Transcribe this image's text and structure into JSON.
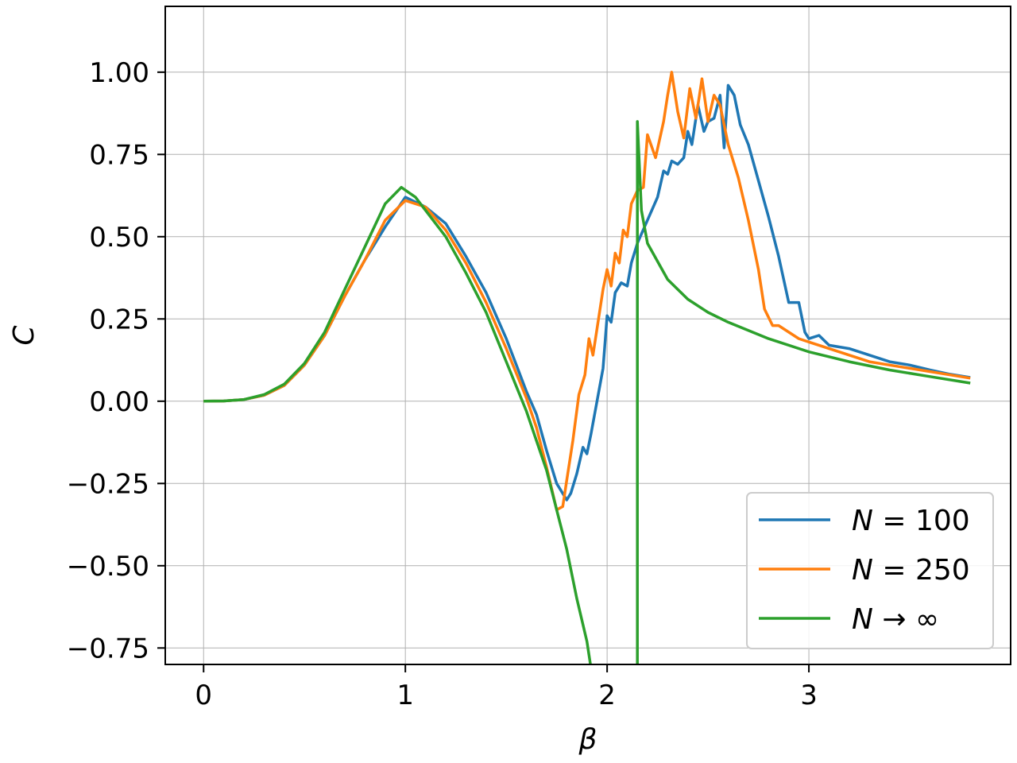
{
  "chart_data": {
    "type": "line",
    "xlabel": "β",
    "ylabel": "C",
    "xlim": [
      -0.19,
      4.0
    ],
    "ylim": [
      -0.8,
      1.2
    ],
    "grid": true,
    "legend_position": "bottom-right",
    "x_ticks": [
      {
        "value": 0,
        "label": "0"
      },
      {
        "value": 1,
        "label": "1"
      },
      {
        "value": 2,
        "label": "2"
      },
      {
        "value": 3,
        "label": "3"
      }
    ],
    "y_ticks": [
      {
        "value": 1.0,
        "label": "1.00"
      },
      {
        "value": 0.75,
        "label": "0.75"
      },
      {
        "value": 0.5,
        "label": "0.50"
      },
      {
        "value": 0.25,
        "label": "0.25"
      },
      {
        "value": 0.0,
        "label": "0.00"
      },
      {
        "value": -0.25,
        "label": "−0.25"
      },
      {
        "value": -0.5,
        "label": "−0.50"
      },
      {
        "value": -0.75,
        "label": "−0.75"
      }
    ],
    "series": [
      {
        "name": "N = 100",
        "legend_var": "N",
        "legend_rel": " = 100",
        "color": "#1f77b4",
        "points": [
          [
            0,
            0
          ],
          [
            0.1,
            0.0008
          ],
          [
            0.2,
            0.005
          ],
          [
            0.3,
            0.018
          ],
          [
            0.4,
            0.048
          ],
          [
            0.5,
            0.11
          ],
          [
            0.6,
            0.2
          ],
          [
            0.7,
            0.32
          ],
          [
            0.8,
            0.43
          ],
          [
            0.9,
            0.53
          ],
          [
            1.0,
            0.62
          ],
          [
            1.1,
            0.59
          ],
          [
            1.2,
            0.54
          ],
          [
            1.3,
            0.44
          ],
          [
            1.4,
            0.33
          ],
          [
            1.5,
            0.19
          ],
          [
            1.55,
            0.11
          ],
          [
            1.6,
            0.03
          ],
          [
            1.65,
            -0.04
          ],
          [
            1.7,
            -0.15
          ],
          [
            1.75,
            -0.25
          ],
          [
            1.8,
            -0.3
          ],
          [
            1.82,
            -0.28
          ],
          [
            1.85,
            -0.22
          ],
          [
            1.88,
            -0.14
          ],
          [
            1.9,
            -0.16
          ],
          [
            1.92,
            -0.1
          ],
          [
            1.95,
            0.0
          ],
          [
            1.98,
            0.1
          ],
          [
            2.0,
            0.26
          ],
          [
            2.02,
            0.24
          ],
          [
            2.04,
            0.33
          ],
          [
            2.07,
            0.36
          ],
          [
            2.1,
            0.35
          ],
          [
            2.12,
            0.42
          ],
          [
            2.15,
            0.48
          ],
          [
            2.2,
            0.55
          ],
          [
            2.25,
            0.62
          ],
          [
            2.28,
            0.7
          ],
          [
            2.3,
            0.69
          ],
          [
            2.32,
            0.73
          ],
          [
            2.35,
            0.72
          ],
          [
            2.38,
            0.74
          ],
          [
            2.4,
            0.82
          ],
          [
            2.42,
            0.78
          ],
          [
            2.45,
            0.9
          ],
          [
            2.48,
            0.82
          ],
          [
            2.5,
            0.85
          ],
          [
            2.53,
            0.86
          ],
          [
            2.56,
            0.93
          ],
          [
            2.58,
            0.77
          ],
          [
            2.6,
            0.96
          ],
          [
            2.63,
            0.93
          ],
          [
            2.66,
            0.84
          ],
          [
            2.7,
            0.78
          ],
          [
            2.75,
            0.67
          ],
          [
            2.8,
            0.56
          ],
          [
            2.85,
            0.44
          ],
          [
            2.9,
            0.3
          ],
          [
            2.95,
            0.3
          ],
          [
            2.98,
            0.21
          ],
          [
            3.0,
            0.19
          ],
          [
            3.05,
            0.2
          ],
          [
            3.1,
            0.17
          ],
          [
            3.2,
            0.16
          ],
          [
            3.3,
            0.14
          ],
          [
            3.4,
            0.12
          ],
          [
            3.5,
            0.11
          ],
          [
            3.6,
            0.095
          ],
          [
            3.7,
            0.082
          ],
          [
            3.8,
            0.072
          ]
        ]
      },
      {
        "name": "N = 250",
        "legend_var": "N",
        "legend_rel": " = 250",
        "color": "#ff7f0e",
        "points": [
          [
            0,
            0
          ],
          [
            0.1,
            0.0008
          ],
          [
            0.2,
            0.005
          ],
          [
            0.3,
            0.018
          ],
          [
            0.4,
            0.048
          ],
          [
            0.5,
            0.11
          ],
          [
            0.6,
            0.2
          ],
          [
            0.7,
            0.32
          ],
          [
            0.8,
            0.43
          ],
          [
            0.9,
            0.55
          ],
          [
            1.0,
            0.61
          ],
          [
            1.1,
            0.59
          ],
          [
            1.2,
            0.52
          ],
          [
            1.3,
            0.42
          ],
          [
            1.4,
            0.3
          ],
          [
            1.5,
            0.16
          ],
          [
            1.6,
            0.01
          ],
          [
            1.65,
            -0.08
          ],
          [
            1.7,
            -0.2
          ],
          [
            1.75,
            -0.33
          ],
          [
            1.78,
            -0.32
          ],
          [
            1.8,
            -0.24
          ],
          [
            1.83,
            -0.12
          ],
          [
            1.86,
            0.02
          ],
          [
            1.89,
            0.08
          ],
          [
            1.91,
            0.19
          ],
          [
            1.93,
            0.14
          ],
          [
            1.95,
            0.22
          ],
          [
            1.98,
            0.34
          ],
          [
            2.0,
            0.4
          ],
          [
            2.02,
            0.35
          ],
          [
            2.04,
            0.45
          ],
          [
            2.06,
            0.42
          ],
          [
            2.08,
            0.52
          ],
          [
            2.1,
            0.5
          ],
          [
            2.12,
            0.6
          ],
          [
            2.15,
            0.64
          ],
          [
            2.18,
            0.65
          ],
          [
            2.2,
            0.81
          ],
          [
            2.24,
            0.74
          ],
          [
            2.28,
            0.85
          ],
          [
            2.3,
            0.93
          ],
          [
            2.32,
            1.0
          ],
          [
            2.35,
            0.88
          ],
          [
            2.38,
            0.8
          ],
          [
            2.41,
            0.95
          ],
          [
            2.44,
            0.86
          ],
          [
            2.47,
            0.98
          ],
          [
            2.5,
            0.85
          ],
          [
            2.53,
            0.93
          ],
          [
            2.56,
            0.9
          ],
          [
            2.6,
            0.78
          ],
          [
            2.65,
            0.68
          ],
          [
            2.7,
            0.55
          ],
          [
            2.75,
            0.4
          ],
          [
            2.78,
            0.28
          ],
          [
            2.82,
            0.23
          ],
          [
            2.85,
            0.23
          ],
          [
            2.9,
            0.21
          ],
          [
            2.95,
            0.19
          ],
          [
            3.0,
            0.18
          ],
          [
            3.1,
            0.16
          ],
          [
            3.2,
            0.14
          ],
          [
            3.3,
            0.12
          ],
          [
            3.4,
            0.11
          ],
          [
            3.5,
            0.1
          ],
          [
            3.6,
            0.09
          ],
          [
            3.7,
            0.08
          ],
          [
            3.8,
            0.07
          ]
        ]
      },
      {
        "name": "N → ∞",
        "legend_var": "N",
        "legend_rel": " → ∞",
        "color": "#2ca02c",
        "points": [
          [
            0,
            0
          ],
          [
            0.1,
            0.0008
          ],
          [
            0.2,
            0.005
          ],
          [
            0.3,
            0.02
          ],
          [
            0.4,
            0.052
          ],
          [
            0.5,
            0.115
          ],
          [
            0.6,
            0.21
          ],
          [
            0.7,
            0.34
          ],
          [
            0.8,
            0.47
          ],
          [
            0.9,
            0.6
          ],
          [
            0.98,
            0.65
          ],
          [
            1.05,
            0.62
          ],
          [
            1.1,
            0.58
          ],
          [
            1.2,
            0.5
          ],
          [
            1.3,
            0.39
          ],
          [
            1.4,
            0.27
          ],
          [
            1.5,
            0.12
          ],
          [
            1.6,
            -0.03
          ],
          [
            1.65,
            -0.12
          ],
          [
            1.7,
            -0.21
          ],
          [
            1.75,
            -0.33
          ],
          [
            1.8,
            -0.45
          ],
          [
            1.85,
            -0.6
          ],
          [
            1.9,
            -0.73
          ],
          [
            1.93,
            -0.85
          ],
          [
            null,
            null
          ],
          [
            2.15,
            -0.85
          ],
          [
            2.15,
            0.85
          ],
          [
            2.17,
            0.58
          ],
          [
            2.2,
            0.48
          ],
          [
            2.3,
            0.37
          ],
          [
            2.4,
            0.31
          ],
          [
            2.5,
            0.27
          ],
          [
            2.6,
            0.24
          ],
          [
            2.8,
            0.19
          ],
          [
            3.0,
            0.15
          ],
          [
            3.2,
            0.12
          ],
          [
            3.4,
            0.095
          ],
          [
            3.6,
            0.075
          ],
          [
            3.8,
            0.055
          ]
        ]
      }
    ]
  }
}
